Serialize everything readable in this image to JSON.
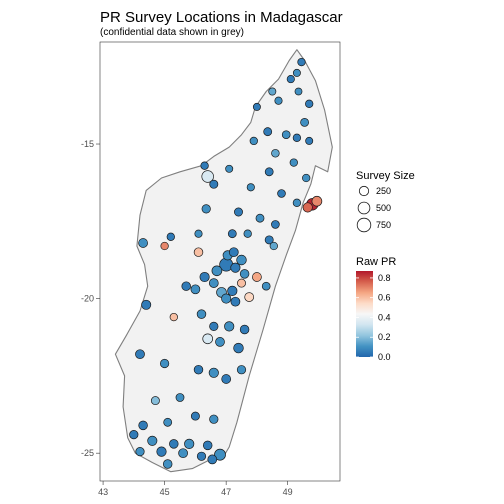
{
  "title": "PR Survey Locations in Madagascar",
  "subtitle": "(confidential data shown in grey)",
  "colors": {
    "land": "#f2f2f2",
    "coast": "#7f7f7f",
    "point_outline": "#1a1a1a",
    "scale": [
      "#2166ac",
      "#4393c3",
      "#92c5de",
      "#d1e5f0",
      "#f7f7f7",
      "#fddbc7",
      "#f4a582",
      "#d6604d",
      "#b2182b"
    ]
  },
  "chart_data": {
    "type": "scatter",
    "xlabel": "",
    "ylabel": "",
    "xlim": [
      42.9,
      50.7
    ],
    "ylim": [
      -25.9,
      -11.7
    ],
    "x_ticks": [
      "43",
      "45",
      "47",
      "49"
    ],
    "y_ticks": [
      "-15",
      "-20",
      "-25"
    ],
    "grid": false,
    "size_legend": {
      "title": "Survey Size",
      "labels": [
        "250",
        "500",
        "750"
      ],
      "values": [
        250,
        500,
        750
      ]
    },
    "color_legend": {
      "title": "Raw PR",
      "labels": [
        "0.8",
        "0.6",
        "0.4",
        "0.2",
        "0.0"
      ],
      "values": [
        0.8,
        0.6,
        0.4,
        0.2,
        0.0
      ],
      "range": [
        0,
        0.87
      ]
    },
    "points": [
      [
        49.45,
        -12.35,
        0.05,
        120
      ],
      [
        49.3,
        -12.7,
        0.1,
        100
      ],
      [
        49.1,
        -12.9,
        0.05,
        110
      ],
      [
        49.35,
        -13.3,
        0.1,
        90
      ],
      [
        48.5,
        -13.3,
        0.15,
        100
      ],
      [
        49.7,
        -13.7,
        0.05,
        120
      ],
      [
        48.7,
        -13.6,
        0.1,
        110
      ],
      [
        48.0,
        -13.8,
        0.05,
        100
      ],
      [
        49.55,
        -14.3,
        0.1,
        150
      ],
      [
        48.35,
        -14.6,
        0.05,
        150
      ],
      [
        48.95,
        -14.7,
        0.1,
        140
      ],
      [
        49.3,
        -14.8,
        0.05,
        120
      ],
      [
        47.9,
        -14.9,
        0.1,
        120
      ],
      [
        49.7,
        -14.9,
        0.05,
        100
      ],
      [
        48.6,
        -15.3,
        0.15,
        130
      ],
      [
        49.2,
        -15.6,
        0.1,
        120
      ],
      [
        46.3,
        -15.7,
        0.05,
        120
      ],
      [
        47.1,
        -15.8,
        0.1,
        100
      ],
      [
        48.4,
        -15.9,
        0.05,
        150
      ],
      [
        49.6,
        -16.1,
        0.1,
        120
      ],
      [
        46.4,
        -16.05,
        0.35,
        500
      ],
      [
        46.6,
        -16.3,
        0.05,
        160
      ],
      [
        47.8,
        -16.4,
        0.1,
        110
      ],
      [
        48.8,
        -16.6,
        0.05,
        140
      ],
      [
        49.3,
        -16.9,
        0.1,
        120
      ],
      [
        49.8,
        -16.95,
        0.85,
        480
      ],
      [
        49.95,
        -16.85,
        0.7,
        300
      ],
      [
        49.65,
        -17.05,
        0.75,
        250
      ],
      [
        46.35,
        -17.1,
        0.1,
        180
      ],
      [
        47.4,
        -17.2,
        0.05,
        160
      ],
      [
        48.1,
        -17.4,
        0.1,
        150
      ],
      [
        48.6,
        -17.6,
        0.05,
        140
      ],
      [
        45.2,
        -18.0,
        0.05,
        120
      ],
      [
        46.1,
        -17.9,
        0.1,
        110
      ],
      [
        47.2,
        -17.9,
        0.05,
        150
      ],
      [
        47.7,
        -17.9,
        0.1,
        120
      ],
      [
        48.4,
        -18.1,
        0.05,
        160
      ],
      [
        48.55,
        -18.3,
        0.15,
        120
      ],
      [
        44.3,
        -18.2,
        0.1,
        220
      ],
      [
        45.0,
        -18.3,
        0.7,
        120
      ],
      [
        46.1,
        -18.5,
        0.6,
        200
      ],
      [
        47.05,
        -18.6,
        0.1,
        250
      ],
      [
        47.25,
        -18.5,
        0.05,
        220
      ],
      [
        47.5,
        -18.75,
        0.1,
        280
      ],
      [
        47.0,
        -18.9,
        0.05,
        680
      ],
      [
        46.7,
        -19.1,
        0.1,
        300
      ],
      [
        47.3,
        -19.0,
        0.05,
        250
      ],
      [
        47.6,
        -19.2,
        0.1,
        200
      ],
      [
        46.3,
        -19.3,
        0.05,
        250
      ],
      [
        46.6,
        -19.5,
        0.1,
        220
      ],
      [
        45.7,
        -19.6,
        0.05,
        200
      ],
      [
        46.0,
        -19.7,
        0.1,
        220
      ],
      [
        46.85,
        -19.8,
        0.15,
        300
      ],
      [
        47.2,
        -19.75,
        0.05,
        260
      ],
      [
        47.5,
        -19.5,
        0.6,
        160
      ],
      [
        48.0,
        -19.3,
        0.65,
        220
      ],
      [
        48.3,
        -19.6,
        0.1,
        140
      ],
      [
        47.0,
        -20.0,
        0.1,
        250
      ],
      [
        47.3,
        -20.1,
        0.05,
        220
      ],
      [
        47.75,
        -19.95,
        0.55,
        220
      ],
      [
        44.4,
        -20.2,
        0.05,
        240
      ],
      [
        45.3,
        -20.6,
        0.6,
        120
      ],
      [
        46.2,
        -20.5,
        0.1,
        200
      ],
      [
        46.6,
        -20.9,
        0.05,
        180
      ],
      [
        47.1,
        -20.9,
        0.1,
        260
      ],
      [
        47.6,
        -21.0,
        0.05,
        200
      ],
      [
        46.4,
        -21.3,
        0.35,
        300
      ],
      [
        46.8,
        -21.4,
        0.1,
        220
      ],
      [
        47.4,
        -21.6,
        0.05,
        280
      ],
      [
        44.2,
        -21.8,
        0.05,
        220
      ],
      [
        45.0,
        -22.1,
        0.1,
        180
      ],
      [
        46.1,
        -22.3,
        0.05,
        200
      ],
      [
        46.6,
        -22.4,
        0.1,
        260
      ],
      [
        47.0,
        -22.6,
        0.05,
        220
      ],
      [
        47.5,
        -22.3,
        0.1,
        180
      ],
      [
        44.7,
        -23.3,
        0.2,
        160
      ],
      [
        45.5,
        -23.2,
        0.1,
        150
      ],
      [
        44.3,
        -24.1,
        0.05,
        200
      ],
      [
        45.1,
        -24.0,
        0.1,
        150
      ],
      [
        46.0,
        -23.8,
        0.05,
        160
      ],
      [
        46.6,
        -23.9,
        0.1,
        180
      ],
      [
        44.0,
        -24.4,
        0.05,
        180
      ],
      [
        44.6,
        -24.6,
        0.1,
        250
      ],
      [
        45.3,
        -24.7,
        0.05,
        200
      ],
      [
        45.8,
        -24.7,
        0.1,
        260
      ],
      [
        46.4,
        -24.75,
        0.05,
        200
      ],
      [
        44.2,
        -24.95,
        0.1,
        180
      ],
      [
        44.9,
        -24.95,
        0.05,
        260
      ],
      [
        45.6,
        -25.0,
        0.1,
        220
      ],
      [
        46.2,
        -25.1,
        0.05,
        180
      ],
      [
        46.8,
        -25.05,
        0.1,
        420
      ],
      [
        46.55,
        -25.2,
        0.05,
        220
      ],
      [
        45.1,
        -25.35,
        0.1,
        200
      ]
    ]
  }
}
